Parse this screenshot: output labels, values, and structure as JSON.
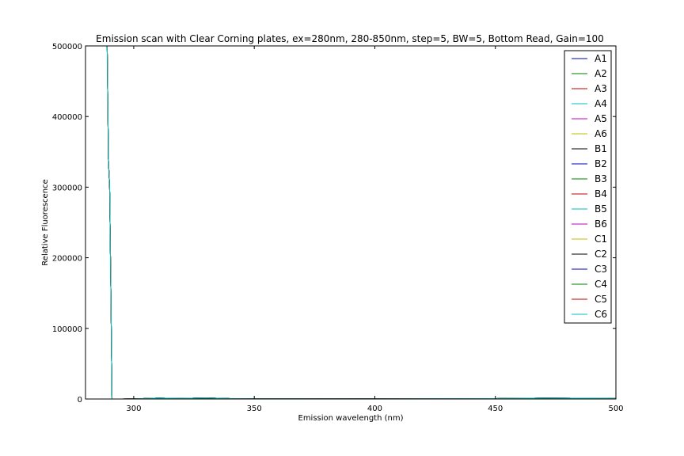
{
  "chart_data": {
    "type": "line",
    "title": "Emission scan with Clear Corning plates, ex=280nm, 280-850nm, step=5, BW=5, Bottom Read, Gain=100",
    "xlabel": "Emission wavelength (nm)",
    "ylabel": "Relative Fluorescence",
    "xlim": [
      280,
      500
    ],
    "ylim": [
      0,
      500000
    ],
    "xticks": [
      300,
      350,
      400,
      450,
      500
    ],
    "yticks": [
      0,
      100000,
      200000,
      300000,
      400000,
      500000
    ],
    "grid": false,
    "legend_position": "upper right",
    "series": [
      {
        "name": "A1",
        "color": "#0000bf"
      },
      {
        "name": "A2",
        "color": "#007f00"
      },
      {
        "name": "A3",
        "color": "#bf0000"
      },
      {
        "name": "A4",
        "color": "#00bfbf"
      },
      {
        "name": "A5",
        "color": "#bf00bf"
      },
      {
        "name": "A6",
        "color": "#bfbf00"
      },
      {
        "name": "B1",
        "color": "#000000"
      },
      {
        "name": "B2",
        "color": "#0000bf"
      },
      {
        "name": "B3",
        "color": "#007f00"
      },
      {
        "name": "B4",
        "color": "#bf0000"
      },
      {
        "name": "B5",
        "color": "#00bfbf"
      },
      {
        "name": "B6",
        "color": "#bf00bf"
      },
      {
        "name": "C1",
        "color": "#bfbf00"
      },
      {
        "name": "C2",
        "color": "#000000"
      },
      {
        "name": "C3",
        "color": "#0000bf"
      },
      {
        "name": "C4",
        "color": "#007f00"
      },
      {
        "name": "C5",
        "color": "#bf0000"
      },
      {
        "name": "C6",
        "color": "#00bfbf"
      }
    ],
    "shared_curve": {
      "x": [
        280,
        285,
        289,
        289.5,
        290,
        290.5,
        291,
        295,
        300,
        310,
        320,
        330,
        340,
        350,
        400,
        450,
        470,
        500
      ],
      "y": [
        500000,
        500000,
        500000,
        340000,
        300000,
        160000,
        0,
        0,
        200,
        1200,
        800,
        1500,
        600,
        300,
        150,
        600,
        1200,
        900
      ]
    }
  }
}
